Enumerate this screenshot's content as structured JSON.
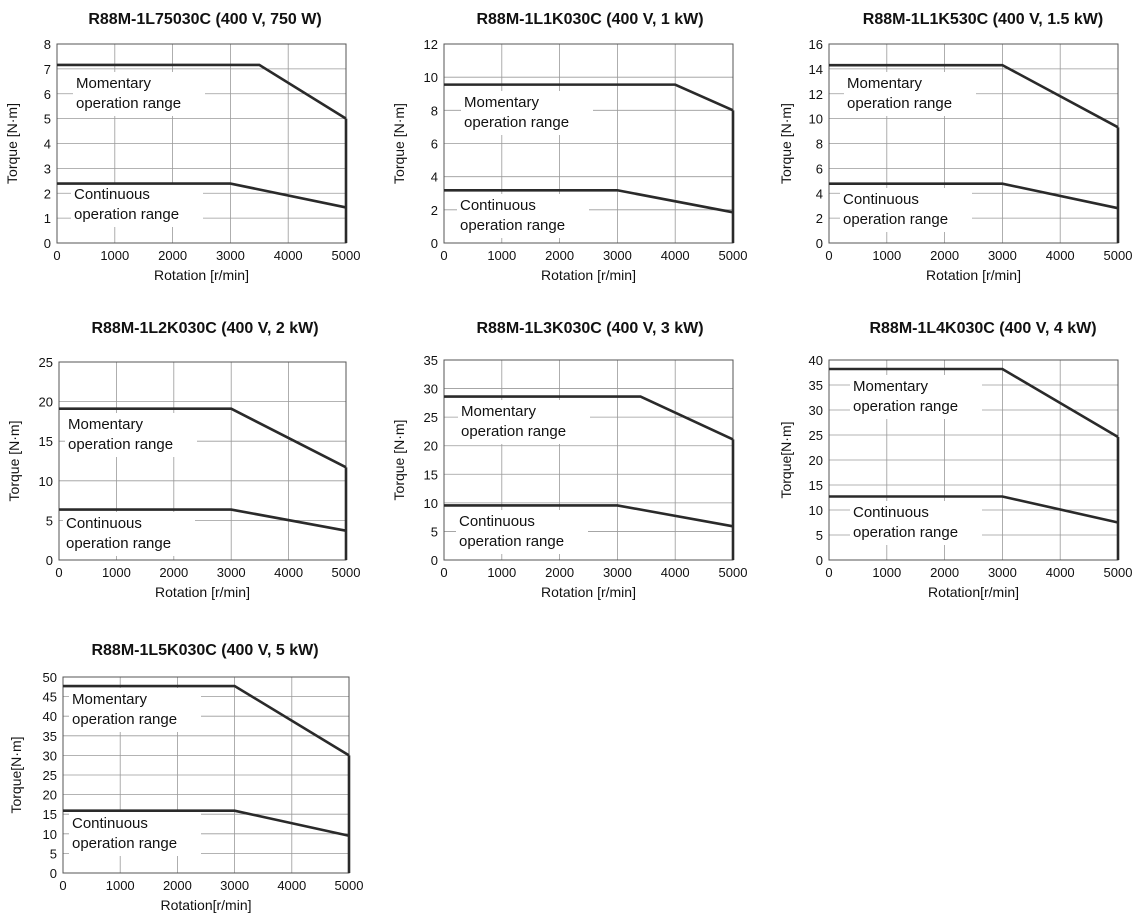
{
  "chart_data": [
    {
      "type": "line",
      "title": "R88M-1L75030C (400 V, 750 W)",
      "xlabel": "Rotation [r/min]",
      "ylabel": "Torque [N·m]",
      "xlim": [
        0,
        5000
      ],
      "ylim": [
        0,
        8
      ],
      "x_ticks": [
        0,
        1000,
        2000,
        3000,
        4000,
        5000
      ],
      "y_ticks": [
        0,
        1,
        2,
        3,
        4,
        5,
        6,
        7,
        8
      ],
      "grid": true,
      "series": [
        {
          "name": "Momentary operation range",
          "x": [
            0,
            3500,
            5000
          ],
          "y": [
            7.16,
            7.16,
            5.0
          ]
        },
        {
          "name": "Continuous operation range",
          "x": [
            0,
            3000,
            5000
          ],
          "y": [
            2.39,
            2.39,
            1.43
          ]
        }
      ],
      "annotations": [
        {
          "lines": [
            "Momentary",
            "operation range"
          ]
        },
        {
          "lines": [
            "Continuous",
            "operation range"
          ]
        }
      ]
    },
    {
      "type": "line",
      "title": "R88M-1L1K030C (400 V, 1 kW)",
      "xlabel": "Rotation [r/min]",
      "ylabel": "Torque [N·m]",
      "xlim": [
        0,
        5000
      ],
      "ylim": [
        0,
        12
      ],
      "x_ticks": [
        0,
        1000,
        2000,
        3000,
        4000,
        5000
      ],
      "y_ticks": [
        0,
        2,
        4,
        6,
        8,
        10,
        12
      ],
      "grid": true,
      "series": [
        {
          "name": "Momentary operation range",
          "x": [
            0,
            4000,
            5000
          ],
          "y": [
            9.55,
            9.55,
            8.0
          ]
        },
        {
          "name": "Continuous operation range",
          "x": [
            0,
            3000,
            5000
          ],
          "y": [
            3.18,
            3.18,
            1.85
          ]
        }
      ],
      "annotations": [
        {
          "lines": [
            "Momentary",
            "operation range"
          ]
        },
        {
          "lines": [
            "Continuous",
            "operation range"
          ]
        }
      ]
    },
    {
      "type": "line",
      "title": "R88M-1L1K530C (400 V, 1.5 kW)",
      "xlabel": "Rotation [r/min]",
      "ylabel": "Torque [N·m]",
      "xlim": [
        0,
        5000
      ],
      "ylim": [
        0,
        16
      ],
      "x_ticks": [
        0,
        1000,
        2000,
        3000,
        4000,
        5000
      ],
      "y_ticks": [
        0,
        2,
        4,
        6,
        8,
        10,
        12,
        14,
        16
      ],
      "grid": true,
      "series": [
        {
          "name": "Momentary operation range",
          "x": [
            0,
            3000,
            5000
          ],
          "y": [
            14.3,
            14.3,
            9.3
          ]
        },
        {
          "name": "Continuous operation range",
          "x": [
            0,
            3000,
            5000
          ],
          "y": [
            4.77,
            4.77,
            2.8
          ]
        }
      ],
      "annotations": [
        {
          "lines": [
            "Momentary",
            "operation range"
          ]
        },
        {
          "lines": [
            "Continuous",
            "operation range"
          ]
        }
      ]
    },
    {
      "type": "line",
      "title": "R88M-1L2K030C (400 V, 2 kW)",
      "xlabel": "Rotation [r/min]",
      "ylabel": "Torque [N·m]",
      "xlim": [
        0,
        5000
      ],
      "ylim": [
        0,
        25
      ],
      "x_ticks": [
        0,
        1000,
        2000,
        3000,
        4000,
        5000
      ],
      "y_ticks": [
        0,
        5,
        10,
        15,
        20,
        25
      ],
      "grid": true,
      "series": [
        {
          "name": "Momentary operation range",
          "x": [
            0,
            3000,
            5000
          ],
          "y": [
            19.1,
            19.1,
            11.7
          ]
        },
        {
          "name": "Continuous operation range",
          "x": [
            0,
            3000,
            5000
          ],
          "y": [
            6.37,
            6.37,
            3.7
          ]
        }
      ],
      "annotations": [
        {
          "lines": [
            "Momentary",
            "operation range"
          ]
        },
        {
          "lines": [
            "Continuous",
            "operation range"
          ]
        }
      ]
    },
    {
      "type": "line",
      "title": "R88M-1L3K030C (400 V, 3 kW)",
      "xlabel": "Rotation [r/min]",
      "ylabel": "Torque [N·m]",
      "xlim": [
        0,
        5000
      ],
      "ylim": [
        0,
        35
      ],
      "x_ticks": [
        0,
        1000,
        2000,
        3000,
        4000,
        5000
      ],
      "y_ticks": [
        0,
        5,
        10,
        15,
        20,
        25,
        30,
        35
      ],
      "grid": true,
      "series": [
        {
          "name": "Momentary operation range",
          "x": [
            0,
            3400,
            5000
          ],
          "y": [
            28.6,
            28.6,
            21.1
          ]
        },
        {
          "name": "Continuous operation range",
          "x": [
            0,
            3000,
            5000
          ],
          "y": [
            9.55,
            9.55,
            5.9
          ]
        }
      ],
      "annotations": [
        {
          "lines": [
            "Momentary",
            "operation range"
          ]
        },
        {
          "lines": [
            "Continuous",
            "operation range"
          ]
        }
      ]
    },
    {
      "type": "line",
      "title": "R88M-1L4K030C (400 V, 4 kW)",
      "xlabel": "Rotation[r/min]",
      "ylabel": "Torque[N·m]",
      "xlim": [
        0,
        5000
      ],
      "ylim": [
        0,
        40
      ],
      "x_ticks": [
        0,
        1000,
        2000,
        3000,
        4000,
        5000
      ],
      "y_ticks": [
        0,
        5,
        10,
        15,
        20,
        25,
        30,
        35,
        40
      ],
      "grid": true,
      "series": [
        {
          "name": "Momentary operation range",
          "x": [
            0,
            3000,
            5000
          ],
          "y": [
            38.2,
            38.2,
            24.6
          ]
        },
        {
          "name": "Continuous operation range",
          "x": [
            0,
            3000,
            5000
          ],
          "y": [
            12.7,
            12.7,
            7.5
          ]
        }
      ],
      "annotations": [
        {
          "lines": [
            "Momentary",
            "operation range"
          ]
        },
        {
          "lines": [
            "Continuous",
            "operation range"
          ]
        }
      ]
    },
    {
      "type": "line",
      "title": "R88M-1L5K030C (400 V, 5 kW)",
      "xlabel": "Rotation[r/min]",
      "ylabel": "Torque[N·m]",
      "xlim": [
        0,
        5000
      ],
      "ylim": [
        0,
        50
      ],
      "x_ticks": [
        0,
        1000,
        2000,
        3000,
        4000,
        5000
      ],
      "y_ticks": [
        0,
        5,
        10,
        15,
        20,
        25,
        30,
        35,
        40,
        45,
        50
      ],
      "grid": true,
      "series": [
        {
          "name": "Momentary operation range",
          "x": [
            0,
            3000,
            5000
          ],
          "y": [
            47.7,
            47.7,
            30.0
          ]
        },
        {
          "name": "Continuous operation range",
          "x": [
            0,
            3000,
            5000
          ],
          "y": [
            15.9,
            15.9,
            9.5
          ]
        }
      ],
      "annotations": [
        {
          "lines": [
            "Momentary",
            "operation range"
          ]
        },
        {
          "lines": [
            "Continuous",
            "operation range"
          ]
        }
      ]
    }
  ]
}
